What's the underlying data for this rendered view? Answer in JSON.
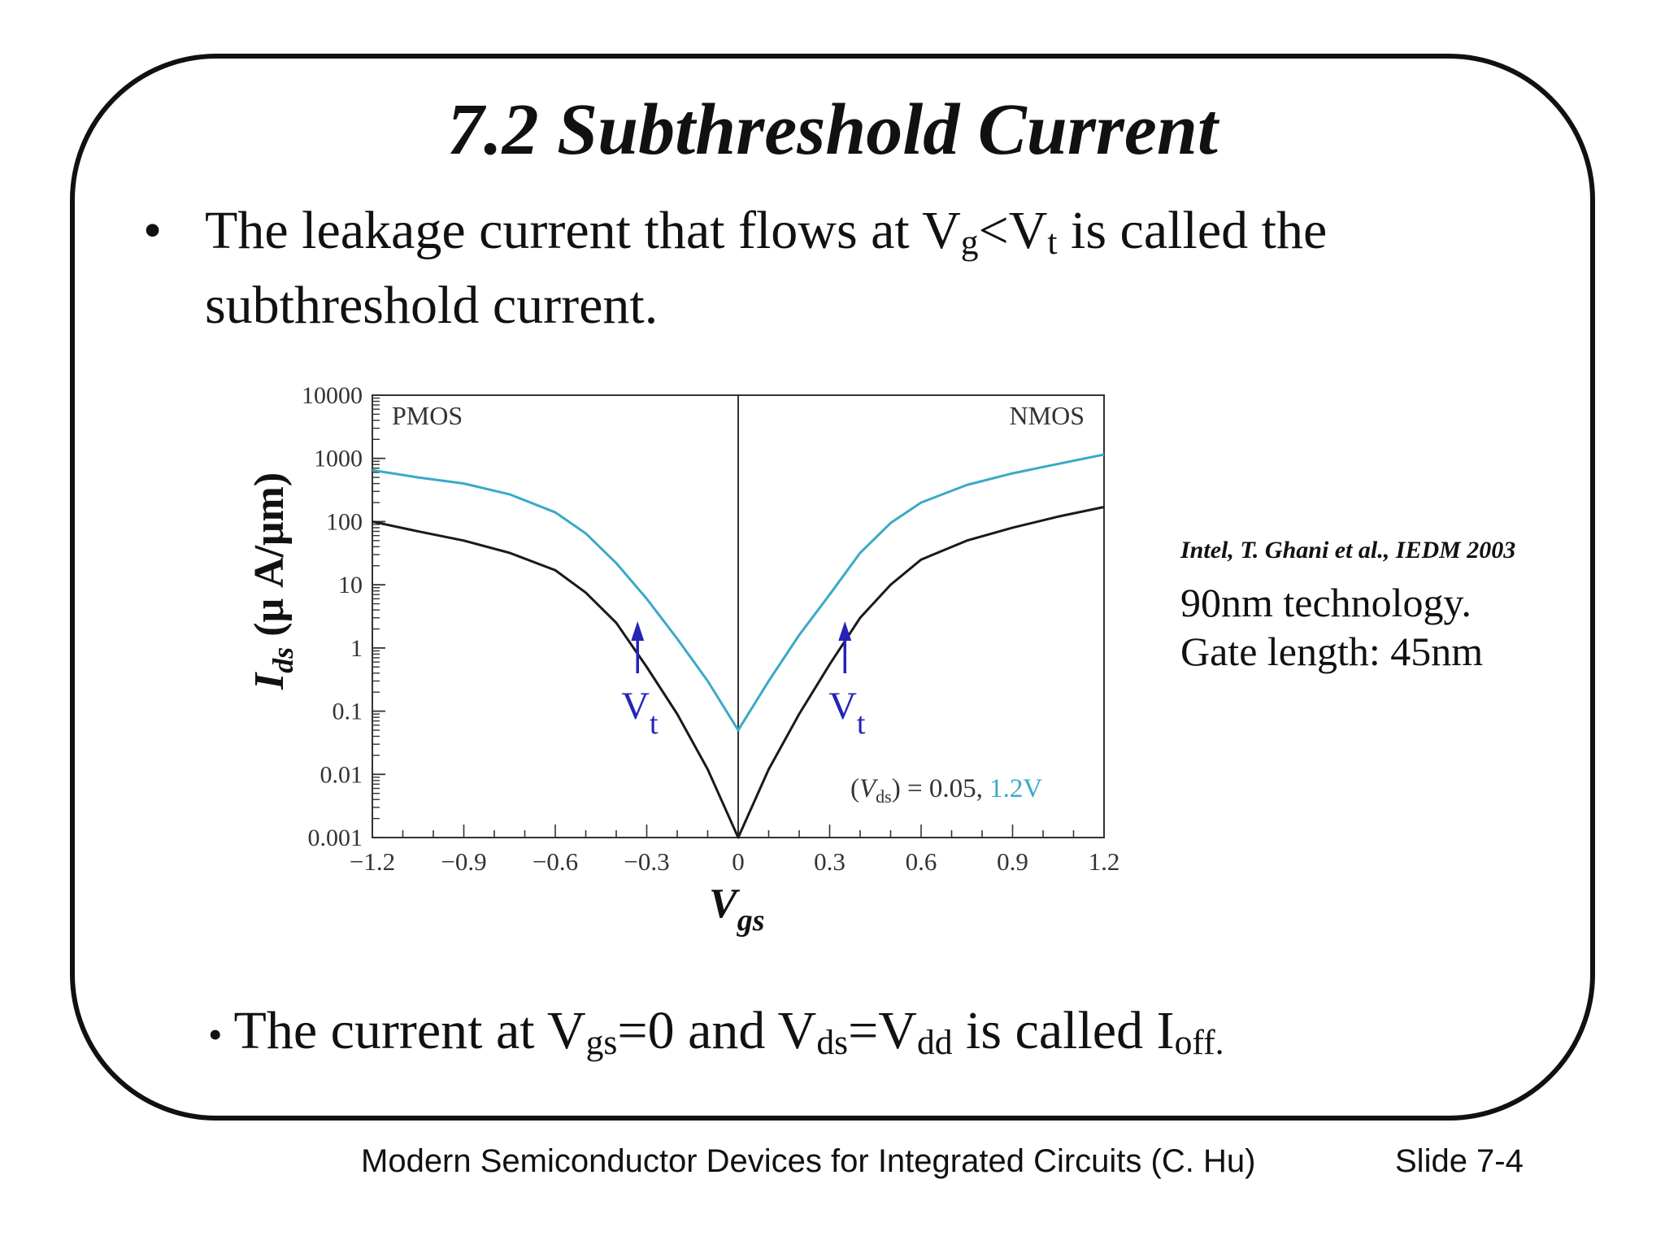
{
  "slide": {
    "title": "7.2 Subthreshold Current",
    "bullet1": {
      "symbol": "•",
      "pre": "The leakage current that flows at V",
      "sub1": "g",
      "mid": "<V",
      "sub2": "t",
      "post": " is called the",
      "line2": "subthreshold current."
    },
    "bullet2": {
      "symbol": "•",
      "t1": "The current at V",
      "s1": "gs",
      "t2": "=0 and V",
      "s2": "ds",
      "t3": "=V",
      "s3": "dd",
      "t4": " is called I",
      "s4": "off."
    },
    "citation": "Intel, T. Ghani et al., IEDM 2003",
    "notes": [
      "90nm technology.",
      "Gate length: 45nm"
    ],
    "footer": {
      "course": "Modern Semiconductor Devices for Integrated Circuits (C. Hu)",
      "slide_number": "Slide 7-4"
    }
  },
  "chart_data": {
    "type": "line",
    "xlabel": {
      "main": "V",
      "sub": "gs"
    },
    "ylabel": {
      "main": "I",
      "sub": "ds",
      "rest": " (μ A/μm)"
    },
    "xlim": [
      -1.2,
      1.2
    ],
    "ylim": [
      0.001,
      10000
    ],
    "yscale": "log",
    "x_ticks": [
      -1.2,
      -0.9,
      -0.6,
      -0.3,
      0,
      0.3,
      0.6,
      0.9,
      1.2
    ],
    "x_tick_labels": [
      "−1.2",
      "−0.9",
      "−0.6",
      "−0.3",
      "0",
      "0.3",
      "0.6",
      "0.9",
      "1.2"
    ],
    "y_ticks": [
      0.001,
      0.01,
      0.1,
      1,
      10,
      100,
      1000,
      10000
    ],
    "y_tick_labels": [
      "0.001",
      "0.01",
      "0.1",
      "1",
      "10",
      "100",
      "1000",
      "10000"
    ],
    "region_labels": {
      "left": "PMOS",
      "right": "NMOS"
    },
    "vt_markers": [
      {
        "x": -0.33,
        "label": "V",
        "sub": "t"
      },
      {
        "x": 0.35,
        "label": "V",
        "sub": "t"
      }
    ],
    "legend": {
      "prefix": "(",
      "var": "V",
      "var_sub": "ds",
      "mid": ") = 0.05, ",
      "highlight": "1.2V"
    },
    "colors": {
      "low_vds": "#1a1a1a",
      "high_vds": "#3aa9c8",
      "vt_marker": "#2424b8",
      "highlight": "#3aa9c8"
    },
    "series": [
      {
        "values": [
          [
            -1.2,
            100
          ],
          [
            -1.05,
            70
          ],
          [
            -0.9,
            50
          ],
          [
            -0.75,
            32
          ],
          [
            -0.6,
            17
          ],
          [
            -0.5,
            7.5
          ],
          [
            -0.4,
            2.5
          ],
          [
            -0.3,
            0.5
          ],
          [
            -0.2,
            0.09
          ],
          [
            -0.1,
            0.012
          ],
          [
            0,
            0.001
          ],
          [
            0.1,
            0.012
          ],
          [
            0.2,
            0.09
          ],
          [
            0.3,
            0.55
          ],
          [
            0.4,
            3
          ],
          [
            0.5,
            10
          ],
          [
            0.6,
            25
          ],
          [
            0.75,
            50
          ],
          [
            0.9,
            80
          ],
          [
            1.05,
            120
          ],
          [
            1.2,
            170
          ]
        ]
      },
      {
        "values": [
          [
            -1.2,
            650
          ],
          [
            -1.05,
            500
          ],
          [
            -0.9,
            400
          ],
          [
            -0.75,
            270
          ],
          [
            -0.6,
            140
          ],
          [
            -0.5,
            65
          ],
          [
            -0.4,
            22
          ],
          [
            -0.3,
            6
          ],
          [
            -0.2,
            1.4
          ],
          [
            -0.1,
            0.3
          ],
          [
            0,
            0.05
          ],
          [
            0.1,
            0.3
          ],
          [
            0.2,
            1.6
          ],
          [
            0.3,
            7
          ],
          [
            0.4,
            32
          ],
          [
            0.5,
            95
          ],
          [
            0.6,
            200
          ],
          [
            0.75,
            380
          ],
          [
            0.9,
            580
          ],
          [
            1.05,
            820
          ],
          [
            1.2,
            1150
          ]
        ]
      }
    ]
  }
}
